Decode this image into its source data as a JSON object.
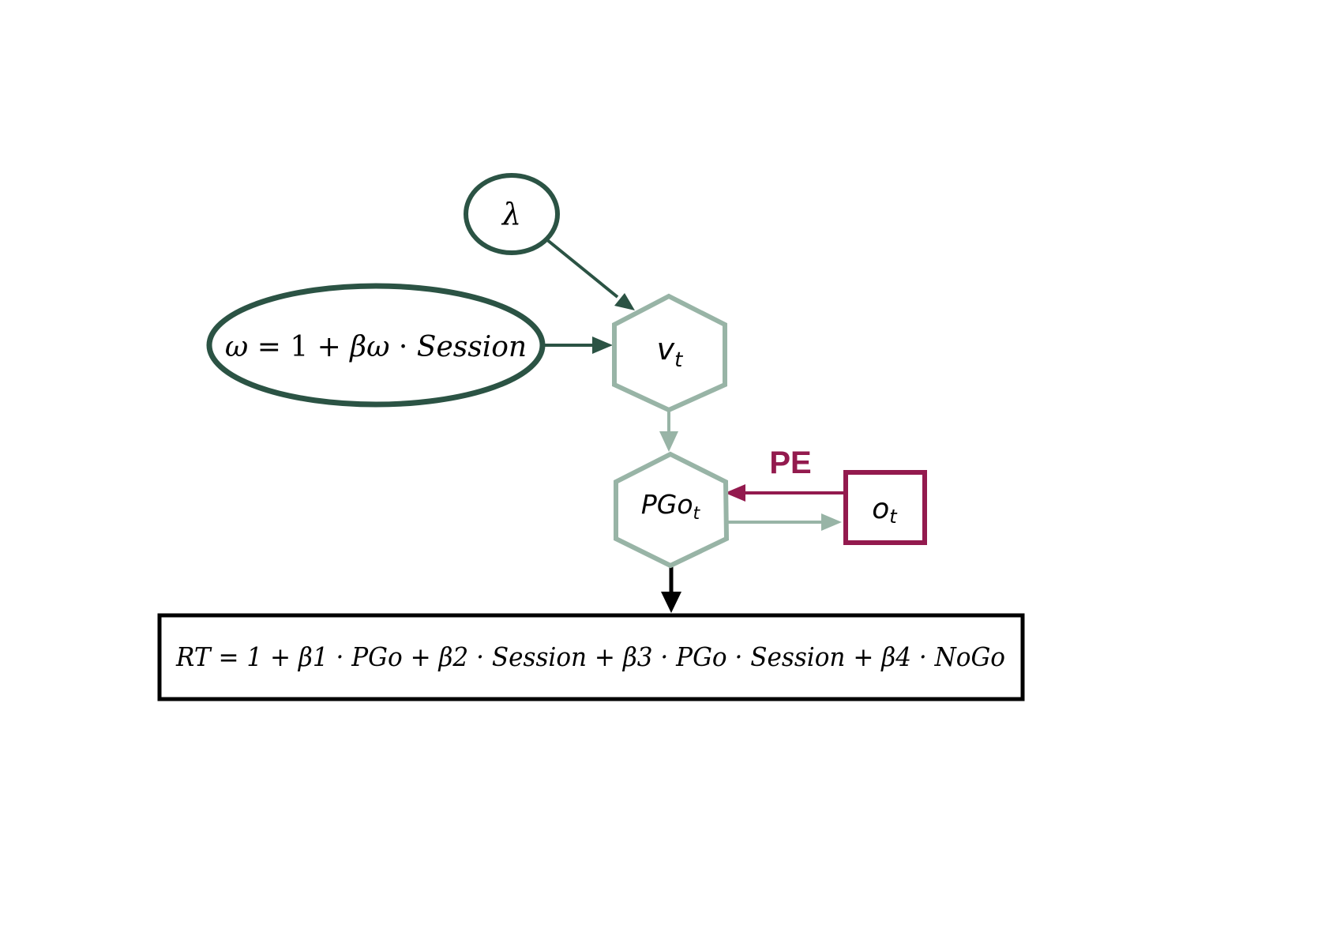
{
  "colors": {
    "dark_green": "#2b5344",
    "light_green": "#98b4a6",
    "crimson": "#931a4e",
    "black": "#000000",
    "background": "#ffffff"
  },
  "nodes": {
    "lambda": {
      "label": "λ",
      "shape": "ellipse"
    },
    "omega": {
      "shape": "ellipse",
      "equation": {
        "omega": "ω",
        "eq": " = ",
        "one": "1",
        "plus": " + ",
        "beta_omega": "βω",
        "dot": " · ",
        "session": "Session"
      }
    },
    "v_t": {
      "base": "v",
      "sub": "t",
      "shape": "hexagon"
    },
    "pgo_t": {
      "base": "PGo",
      "sub": "t",
      "shape": "hexagon"
    },
    "o_t": {
      "base": "o",
      "sub": "t",
      "shape": "rectangle"
    },
    "rt": {
      "shape": "rectangle",
      "equation": "RT = 1 + β1 · PGo + β2 · Session + β3 · PGo · Session + β4 · NoGo"
    }
  },
  "edges": {
    "pe_label": "PE"
  }
}
